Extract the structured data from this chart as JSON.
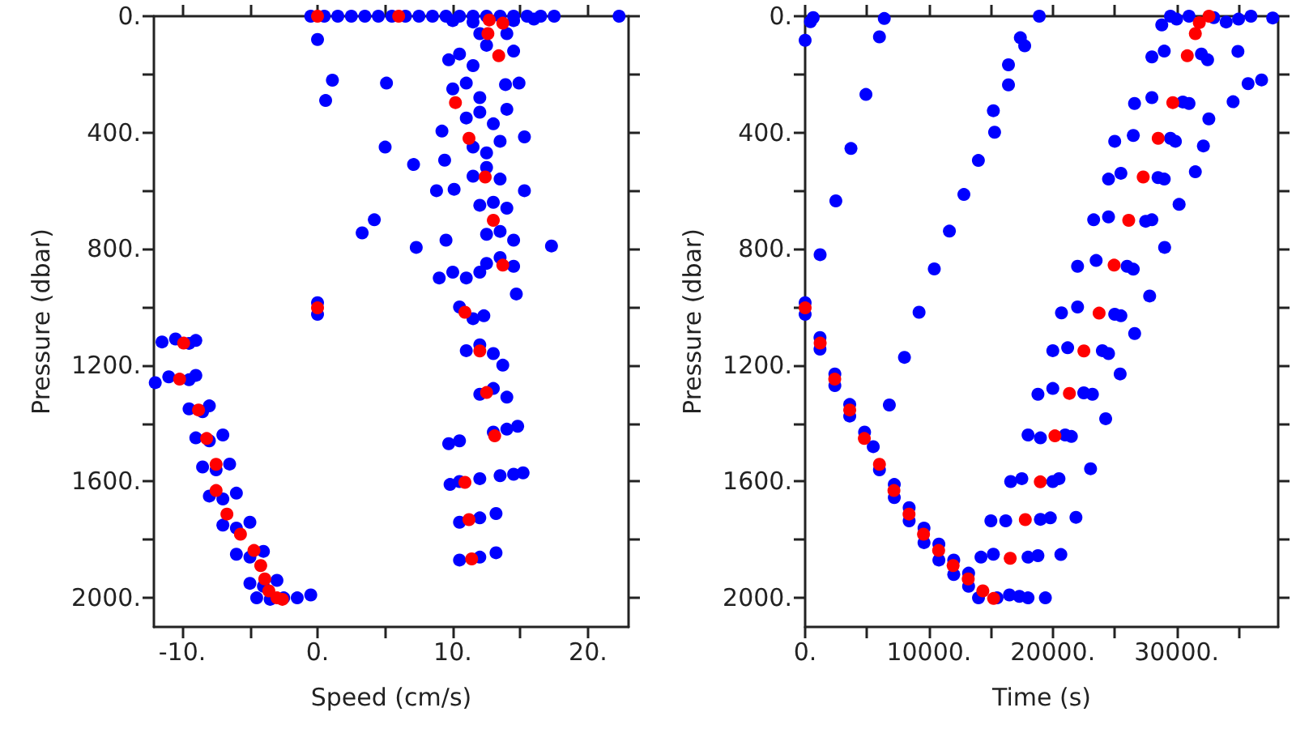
{
  "chart_data": [
    {
      "type": "scatter",
      "xlabel": "Speed (cm/s)",
      "ylabel": "Pressure (dbar)",
      "marker": "circle",
      "xlim": [
        -12.1,
        23
      ],
      "ylim": [
        2100,
        0
      ],
      "xticks": [
        {
          "value": -10,
          "label": "-10."
        },
        {
          "value": -5,
          "label": null
        },
        {
          "value": 0,
          "label": "0."
        },
        {
          "value": 5,
          "label": null
        },
        {
          "value": 10,
          "label": "10."
        },
        {
          "value": 15,
          "label": null
        },
        {
          "value": 20,
          "label": "20."
        }
      ],
      "yticks": [
        {
          "value": 0,
          "label": "0."
        },
        {
          "value": 200,
          "label": null
        },
        {
          "value": 400,
          "label": "400."
        },
        {
          "value": 600,
          "label": null
        },
        {
          "value": 800,
          "label": "800."
        },
        {
          "value": 1000,
          "label": null
        },
        {
          "value": 1200,
          "label": "1200."
        },
        {
          "value": 1400,
          "label": null
        },
        {
          "value": 1600,
          "label": "1600."
        },
        {
          "value": 1800,
          "label": null
        },
        {
          "value": 2000,
          "label": "2000."
        }
      ],
      "series": [
        {
          "color": "#0000ff",
          "x": [
            -0.5,
            0.5,
            1.5,
            2.5,
            3.5,
            4.5,
            5.5,
            6.5,
            7.5,
            8.5,
            9.5,
            10.5,
            11.5,
            12.5,
            13.5,
            14.5,
            15.5,
            16.5,
            17.5,
            22.3,
            10,
            11.5,
            14.5,
            16,
            0,
            1.1,
            0.6,
            5.1,
            5.0,
            7.1,
            4.2,
            3.3,
            7.3,
            17.3,
            15.3,
            15.3,
            9.2,
            9.4,
            8.8,
            9.5,
            14.7,
            10.1,
            13.9,
            14.9,
            14,
            12,
            14,
            12.5,
            14.5,
            9.7,
            10.5,
            11.5,
            10,
            11,
            12,
            11,
            12,
            13,
            11.5,
            12.5,
            13.5,
            11.5,
            12.5,
            13.5,
            12,
            13,
            14,
            12.5,
            13.5,
            14.5,
            12.5,
            13.5,
            14.5,
            9,
            10,
            11,
            12,
            10.5,
            11.5,
            12.3,
            11,
            12,
            13,
            13.7,
            12,
            13,
            14,
            13,
            14,
            14.8,
            9.7,
            10.5,
            13.5,
            14.5,
            15.2,
            9.8,
            10.5,
            12,
            10.5,
            12,
            13.2,
            10.5,
            12,
            13.2,
            0,
            0,
            -11.5,
            -10.5,
            -9.5,
            -9,
            -12,
            -11,
            -9.5,
            -9,
            -9.5,
            -8.5,
            -8,
            -9,
            -8,
            -7,
            -8.5,
            -7.5,
            -6.5,
            -8,
            -7,
            -6,
            -7,
            -6,
            -5,
            -6,
            -5,
            -4,
            -5,
            -4,
            -3,
            -4.5,
            -3.5,
            -2.5,
            -1.5,
            -0.5
          ],
          "values": [
            0,
            0,
            0,
            0,
            0,
            0,
            0,
            0,
            0,
            0,
            0,
            0,
            0,
            0,
            0,
            0,
            0,
            0,
            0,
            0,
            15,
            20,
            15,
            10,
            80,
            220,
            290,
            230,
            450,
            510,
            700,
            745,
            795,
            790,
            415,
            600,
            395,
            495,
            600,
            770,
            955,
            595,
            235,
            230,
            320,
            60,
            60,
            100,
            120,
            150,
            130,
            170,
            250,
            230,
            280,
            350,
            330,
            370,
            450,
            470,
            430,
            550,
            520,
            560,
            650,
            640,
            660,
            750,
            740,
            770,
            850,
            830,
            860,
            900,
            880,
            900,
            880,
            1000,
            1040,
            1030,
            1150,
            1130,
            1160,
            1200,
            1300,
            1280,
            1310,
            1430,
            1420,
            1410,
            1470,
            1460,
            1580,
            1575,
            1570,
            1610,
            1600,
            1590,
            1740,
            1725,
            1710,
            1870,
            1860,
            1845,
            985,
            1025,
            1120,
            1110,
            1125,
            1115,
            1260,
            1240,
            1250,
            1235,
            1350,
            1360,
            1340,
            1450,
            1460,
            1440,
            1550,
            1560,
            1540,
            1650,
            1660,
            1640,
            1750,
            1760,
            1740,
            1850,
            1860,
            1840,
            1950,
            1960,
            1940,
            2000,
            2005,
            2000,
            2000,
            1990
          ]
        },
        {
          "color": "#ff0000",
          "x": [
            0,
            6.0,
            12.7,
            13.7,
            12.6,
            13.4,
            10.2,
            11.2,
            12.4,
            13.0,
            13.7,
            10.9,
            12.0,
            12.5,
            13.1,
            10.9,
            11.2,
            11.4,
            0,
            -9.9,
            -10.2,
            -8.8,
            -8.2,
            -7.5,
            -7.5,
            -6.7,
            -5.7,
            -4.7,
            -4.2,
            -3.9,
            -3.6,
            -3.0,
            -2.6
          ],
          "values": [
            0,
            0,
            13,
            24,
            60,
            136,
            297,
            420,
            553,
            702,
            856,
            1018,
            1151,
            1294,
            1443,
            1603,
            1731,
            1866,
            1003,
            1124,
            1248,
            1354,
            1452,
            1541,
            1631,
            1712,
            1781,
            1837,
            1889,
            1935,
            1976,
            2000,
            2005
          ]
        }
      ]
    },
    {
      "type": "scatter",
      "xlabel": "Time (s)",
      "ylabel": "Pressure (dbar)",
      "marker": "circle",
      "xlim": [
        0,
        38200
      ],
      "ylim": [
        2100,
        0
      ],
      "xticks": [
        {
          "value": 0,
          "label": "0."
        },
        {
          "value": 5000,
          "label": null
        },
        {
          "value": 10000,
          "label": "10000."
        },
        {
          "value": 15000,
          "label": null
        },
        {
          "value": 20000,
          "label": "20000."
        },
        {
          "value": 25000,
          "label": null
        },
        {
          "value": 30000,
          "label": "30000."
        },
        {
          "value": 35000,
          "label": null
        }
      ],
      "yticks": [
        {
          "value": 0,
          "label": "0."
        },
        {
          "value": 200,
          "label": null
        },
        {
          "value": 400,
          "label": "400."
        },
        {
          "value": 600,
          "label": null
        },
        {
          "value": 800,
          "label": "800."
        },
        {
          "value": 1000,
          "label": null
        },
        {
          "value": 1200,
          "label": "1200."
        },
        {
          "value": 1400,
          "label": null
        },
        {
          "value": 1600,
          "label": "1600."
        },
        {
          "value": 1800,
          "label": null
        },
        {
          "value": 2000,
          "label": "2000."
        }
      ],
      "series": [
        {
          "color": "#0000ff",
          "x": [
            0,
            430,
            650,
            4910,
            3700,
            2480,
            1210,
            6390,
            6000,
            18910,
            17380,
            17730,
            16420,
            16420,
            15200,
            15300,
            13990,
            12820,
            11650,
            10430,
            9200,
            8020,
            6800,
            0,
            0,
            1200,
            1200,
            2400,
            2400,
            3600,
            3600,
            4800,
            5500,
            6000,
            7200,
            7200,
            8400,
            8400,
            9600,
            9600,
            10800,
            10800,
            12000,
            12000,
            13200,
            13200,
            14000,
            15500,
            16500,
            17300,
            18000,
            19400,
            14200,
            15200,
            18000,
            18800,
            15000,
            16200,
            19000,
            19800,
            16600,
            17500,
            20000,
            20500,
            18000,
            19000,
            21000,
            21500,
            18800,
            20000,
            22500,
            23200,
            20000,
            21200,
            24000,
            24500,
            20700,
            22000,
            25000,
            25500,
            22000,
            23500,
            26000,
            26500,
            23300,
            24500,
            27500,
            28000,
            24500,
            25500,
            28500,
            29000,
            25000,
            26500,
            29500,
            29900,
            26600,
            28000,
            30500,
            31000,
            28000,
            29000,
            32000,
            32500,
            28800,
            29500,
            30000,
            31000,
            33000,
            34000,
            35000,
            36000,
            20650,
            21870,
            23050,
            24270,
            25440,
            26610,
            27820,
            29030,
            30200,
            31510,
            32160,
            32600,
            34560,
            35770,
            36860,
            34950,
            37760
          ],
          "values": [
            83,
            19,
            5,
            269,
            455,
            635,
            820,
            8,
            71,
            0,
            74,
            102,
            167,
            236,
            325,
            399,
            496,
            613,
            739,
            869,
            1018,
            1173,
            1337,
            985,
            1025,
            1105,
            1145,
            1230,
            1270,
            1335,
            1375,
            1430,
            1480,
            1560,
            1610,
            1655,
            1690,
            1735,
            1760,
            1810,
            1815,
            1870,
            1870,
            1920,
            1915,
            1960,
            2000,
            2000,
            1990,
            1995,
            2000,
            2000,
            1860,
            1850,
            1860,
            1855,
            1735,
            1735,
            1730,
            1725,
            1600,
            1590,
            1600,
            1590,
            1440,
            1450,
            1440,
            1445,
            1300,
            1280,
            1295,
            1300,
            1150,
            1140,
            1150,
            1160,
            1020,
            1000,
            1025,
            1030,
            860,
            840,
            860,
            870,
            700,
            690,
            705,
            700,
            560,
            540,
            555,
            560,
            430,
            410,
            420,
            430,
            300,
            280,
            295,
            300,
            140,
            120,
            130,
            150,
            30,
            0,
            10,
            0,
            5,
            20,
            10,
            0,
            1851,
            1723,
            1556,
            1384,
            1230,
            1091,
            962,
            795,
            647,
            535,
            446,
            353,
            294,
            232,
            219,
            121,
            6
          ]
        },
        {
          "color": "#ff0000",
          "x": [
            0,
            1213,
            2390,
            3600,
            4780,
            6000,
            7170,
            8390,
            9560,
            10780,
            11950,
            13170,
            14350,
            15220,
            16560,
            17780,
            18990,
            20170,
            21340,
            22510,
            23740,
            24950,
            26130,
            27300,
            28510,
            29690,
            30860,
            31510,
            31830,
            32610
          ],
          "values": [
            1003,
            1124,
            1248,
            1354,
            1452,
            1541,
            1631,
            1712,
            1781,
            1837,
            1889,
            1935,
            1976,
            2002,
            1864,
            1731,
            1601,
            1443,
            1297,
            1151,
            1021,
            856,
            702,
            553,
            420,
            297,
            136,
            60,
            22,
            0
          ]
        }
      ]
    }
  ]
}
